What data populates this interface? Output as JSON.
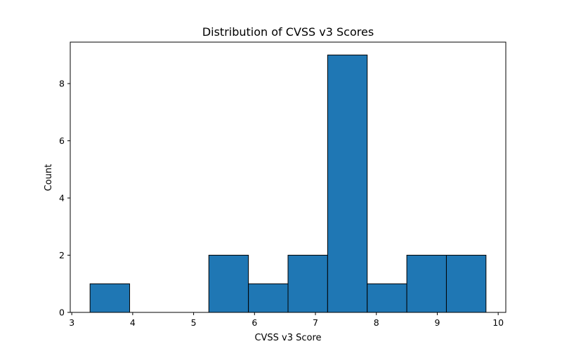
{
  "chart_data": {
    "type": "bar",
    "title": "Distribution of CVSS v3 Scores",
    "xlabel": "CVSS v3 Score",
    "ylabel": "Count",
    "xlim": [
      2.975,
      10.125
    ],
    "ylim": [
      0,
      9.45
    ],
    "xticks": [
      3,
      4,
      5,
      6,
      7,
      8,
      9,
      10
    ],
    "yticks": [
      0,
      2,
      4,
      6,
      8
    ],
    "bins": [
      {
        "start": 3.3,
        "end": 3.95,
        "count": 1
      },
      {
        "start": 3.95,
        "end": 4.6,
        "count": 0
      },
      {
        "start": 4.6,
        "end": 5.25,
        "count": 0
      },
      {
        "start": 5.25,
        "end": 5.9,
        "count": 2
      },
      {
        "start": 5.9,
        "end": 6.55,
        "count": 1
      },
      {
        "start": 6.55,
        "end": 7.2,
        "count": 2
      },
      {
        "start": 7.2,
        "end": 7.85,
        "count": 9
      },
      {
        "start": 7.85,
        "end": 8.5,
        "count": 1
      },
      {
        "start": 8.5,
        "end": 9.15,
        "count": 2
      },
      {
        "start": 9.15,
        "end": 9.8,
        "count": 2
      }
    ],
    "bar_color": "#1f77b4",
    "edge_color": "#000000",
    "grid": false,
    "legend": "none"
  }
}
